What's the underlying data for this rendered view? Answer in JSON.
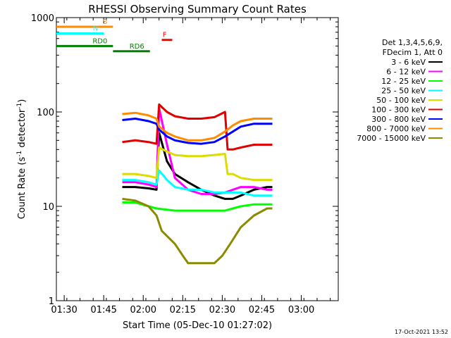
{
  "chart_data": {
    "type": "line",
    "title": "RHESSI Observing Summary Count Rates",
    "xlabel": "Start Time (05-Dec-10 01:27:02)",
    "ylabel_main": "Count Rate (s",
    "ylabel_sup1": "-1",
    "ylabel_mid": " detector",
    "ylabel_sup2": "-1",
    "ylabel_end": ")",
    "y_scale": "log",
    "ylim": [
      1,
      1000
    ],
    "x_units": "minutes after 01:27:02",
    "xlim": [
      0,
      107
    ],
    "y_ticks": [
      {
        "value": 1,
        "label": "1"
      },
      {
        "value": 10,
        "label": "10"
      },
      {
        "value": 100,
        "label": "100"
      },
      {
        "value": 1000,
        "label": "1000"
      }
    ],
    "x_ticks": [
      {
        "value": 2.97,
        "label": "01:30"
      },
      {
        "value": 17.97,
        "label": "01:45"
      },
      {
        "value": 32.97,
        "label": "02:00"
      },
      {
        "value": 47.97,
        "label": "02:15"
      },
      {
        "value": 62.97,
        "label": "02:30"
      },
      {
        "value": 77.97,
        "label": "02:45"
      },
      {
        "value": 92.97,
        "label": "03:00"
      }
    ],
    "legend": {
      "placement": "right",
      "header_line1": "Det 1,3,4,5,6,9,",
      "header_line2": "FDecim 1, Att 0"
    },
    "series": [
      {
        "name": "3 - 6 keV",
        "color": "#000000",
        "x": [
          25,
          30,
          35,
          38,
          39,
          42,
          45,
          50,
          55,
          60,
          64,
          67,
          70,
          75,
          80,
          82
        ],
        "y": [
          16,
          16,
          15.5,
          15,
          60,
          30,
          22,
          18,
          15,
          13,
          12,
          12,
          13,
          15,
          16,
          16
        ]
      },
      {
        "name": "6 - 12 keV",
        "color": "#ff00ff",
        "x": [
          25,
          30,
          35,
          38,
          39,
          42,
          45,
          50,
          55,
          60,
          64,
          67,
          70,
          75,
          80,
          82
        ],
        "y": [
          18,
          18,
          17,
          16,
          110,
          45,
          20,
          15,
          13.5,
          13.5,
          14,
          15,
          16,
          16,
          15,
          15
        ]
      },
      {
        "name": "12 - 25 keV",
        "color": "#00ff00",
        "x": [
          25,
          30,
          35,
          38,
          45,
          50,
          55,
          60,
          64,
          67,
          70,
          75,
          80,
          82
        ],
        "y": [
          11,
          11,
          10,
          9.5,
          9,
          9,
          9,
          9,
          9,
          9.5,
          10,
          10.5,
          10.5,
          10.5
        ]
      },
      {
        "name": "25 - 50 keV",
        "color": "#00ffff",
        "x": [
          25,
          30,
          35,
          38,
          39,
          42,
          45,
          50,
          55,
          60,
          64,
          67,
          70,
          75,
          80,
          82
        ],
        "y": [
          19,
          19,
          18,
          17,
          24,
          19,
          16,
          15,
          15,
          14,
          14,
          14,
          14,
          13,
          13,
          13
        ]
      },
      {
        "name": "50 - 100 keV",
        "color": "#dcdc00",
        "x": [
          25,
          30,
          35,
          38,
          39,
          42,
          45,
          50,
          55,
          60,
          64,
          65,
          67,
          70,
          75,
          80,
          82
        ],
        "y": [
          22,
          22,
          21,
          20,
          42,
          38,
          35,
          34,
          34,
          35,
          36,
          22,
          22,
          20,
          19,
          19,
          19
        ]
      },
      {
        "name": "100 - 300 keV",
        "color": "#e00000",
        "x": [
          25,
          30,
          35,
          38,
          39,
          42,
          45,
          50,
          55,
          60,
          64,
          65,
          67,
          70,
          75,
          80,
          82
        ],
        "y": [
          48,
          50,
          48,
          46,
          120,
          100,
          90,
          85,
          85,
          88,
          100,
          40,
          40,
          42,
          45,
          45,
          45
        ]
      },
      {
        "name": "300 - 800 keV",
        "color": "#0000ff",
        "x": [
          25,
          30,
          35,
          38,
          39,
          42,
          45,
          50,
          55,
          60,
          64,
          67,
          70,
          75,
          80,
          82
        ],
        "y": [
          82,
          85,
          80,
          75,
          65,
          55,
          50,
          47,
          46,
          48,
          55,
          62,
          70,
          75,
          75,
          75
        ]
      },
      {
        "name": "800 - 7000 keV",
        "color": "#ff8c00",
        "x": [
          25,
          30,
          35,
          38,
          39,
          42,
          45,
          50,
          55,
          60,
          64,
          67,
          70,
          75,
          80,
          82
        ],
        "y": [
          95,
          98,
          92,
          85,
          70,
          60,
          55,
          50,
          50,
          53,
          62,
          72,
          80,
          85,
          85,
          85
        ]
      },
      {
        "name": "7000 - 15000 keV",
        "color": "#8b8b00",
        "x": [
          25,
          30,
          35,
          38,
          40,
          45,
          48,
          50,
          55,
          60,
          63,
          66,
          70,
          75,
          80,
          82
        ],
        "y": [
          12,
          11.5,
          10,
          8,
          5.5,
          4,
          3,
          2.5,
          2.5,
          2.5,
          3,
          4,
          6,
          8,
          9.5,
          9.5
        ]
      }
    ],
    "status_bars": [
      {
        "label": "S",
        "color": "#ff8c00",
        "x_start": 0,
        "x_end": 21.5,
        "y": 800
      },
      {
        "label": "N",
        "color": "#00ffff",
        "x_start": 0,
        "x_end": 18,
        "y": 680
      },
      {
        "label": "F",
        "color": "#ff0000",
        "x_start": 40,
        "x_end": 44,
        "y": 580
      },
      {
        "label": "RD0",
        "color": "#008000",
        "x_start": 0,
        "x_end": 21.5,
        "y": 500
      },
      {
        "label": "RD6",
        "color": "#008000",
        "x_start": 21.5,
        "x_end": 35.5,
        "y": 440
      }
    ],
    "annotation_dates": "17-Oct-2021 13:52"
  }
}
